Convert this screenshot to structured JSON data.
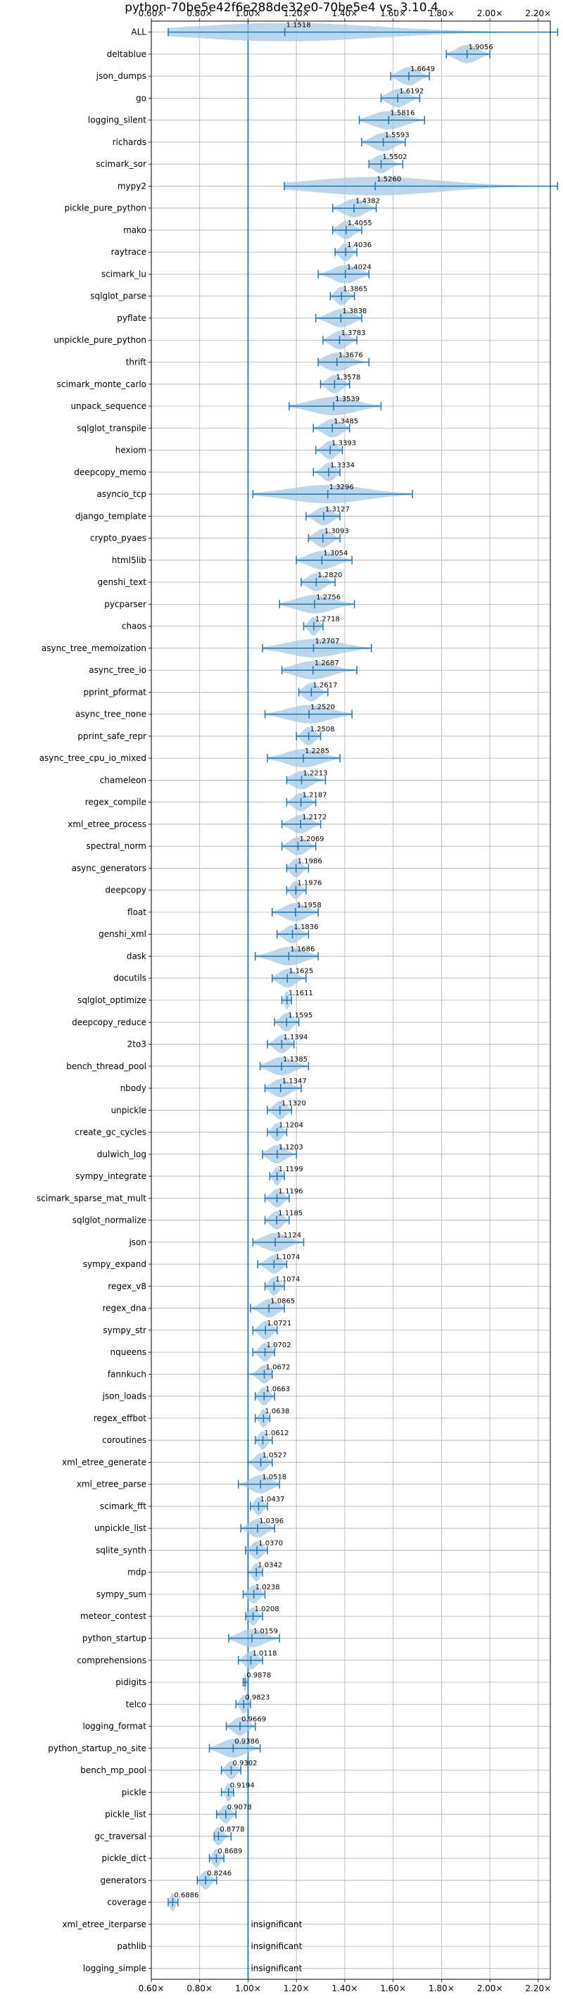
{
  "chart_data": {
    "type": "violin",
    "title": "python-70be5e42f6e288de32e0-70be5e4 vs. 3.10.4",
    "xlabel": "",
    "ylabel": "",
    "xlim": [
      0.6,
      2.25
    ],
    "xticks": [
      0.6,
      0.8,
      1.0,
      1.2,
      1.4,
      1.6,
      1.8,
      2.0,
      2.2
    ],
    "xtick_labels": [
      "0.60×",
      "0.80×",
      "1.00×",
      "1.20×",
      "1.40×",
      "1.60×",
      "1.80×",
      "2.00×",
      "2.20×"
    ],
    "reference_line": 1.0,
    "grid": true,
    "series_color": "#1f77b4",
    "violin_color": "#a6c8e6",
    "insignificant_label": "insignificant",
    "benchmarks": [
      {
        "name": "ALL",
        "value": 1.1518,
        "label": "1.1518",
        "min": 0.67,
        "max": 2.28
      },
      {
        "name": "deltablue",
        "value": 1.9056,
        "label": "1.9056",
        "min": 1.82,
        "max": 2.0
      },
      {
        "name": "json_dumps",
        "value": 1.6649,
        "label": "1.6649",
        "min": 1.59,
        "max": 1.75
      },
      {
        "name": "go",
        "value": 1.6192,
        "label": "1.6192",
        "min": 1.55,
        "max": 1.71
      },
      {
        "name": "logging_silent",
        "value": 1.5816,
        "label": "1.5816",
        "min": 1.46,
        "max": 1.73
      },
      {
        "name": "richards",
        "value": 1.5593,
        "label": "1.5593",
        "min": 1.47,
        "max": 1.65
      },
      {
        "name": "scimark_sor",
        "value": 1.5502,
        "label": "1.5502",
        "min": 1.5,
        "max": 1.64
      },
      {
        "name": "mypy2",
        "value": 1.526,
        "label": "1.5260",
        "min": 1.15,
        "max": 2.28
      },
      {
        "name": "pickle_pure_python",
        "value": 1.4382,
        "label": "1.4382",
        "min": 1.35,
        "max": 1.53
      },
      {
        "name": "mako",
        "value": 1.4055,
        "label": "1.4055",
        "min": 1.35,
        "max": 1.47
      },
      {
        "name": "raytrace",
        "value": 1.4036,
        "label": "1.4036",
        "min": 1.36,
        "max": 1.45
      },
      {
        "name": "scimark_lu",
        "value": 1.4024,
        "label": "1.4024",
        "min": 1.29,
        "max": 1.5
      },
      {
        "name": "sqlglot_parse",
        "value": 1.3865,
        "label": "1.3865",
        "min": 1.34,
        "max": 1.44
      },
      {
        "name": "pyflate",
        "value": 1.3838,
        "label": "1.3838",
        "min": 1.28,
        "max": 1.47
      },
      {
        "name": "unpickle_pure_python",
        "value": 1.3783,
        "label": "1.3783",
        "min": 1.31,
        "max": 1.45
      },
      {
        "name": "thrift",
        "value": 1.3676,
        "label": "1.3676",
        "min": 1.29,
        "max": 1.5
      },
      {
        "name": "scimark_monte_carlo",
        "value": 1.3578,
        "label": "1.3578",
        "min": 1.3,
        "max": 1.42
      },
      {
        "name": "unpack_sequence",
        "value": 1.3539,
        "label": "1.3539",
        "min": 1.17,
        "max": 1.55
      },
      {
        "name": "sqlglot_transpile",
        "value": 1.3485,
        "label": "1.3485",
        "min": 1.27,
        "max": 1.42
      },
      {
        "name": "hexiom",
        "value": 1.3393,
        "label": "1.3393",
        "min": 1.28,
        "max": 1.39
      },
      {
        "name": "deepcopy_memo",
        "value": 1.3334,
        "label": "1.3334",
        "min": 1.27,
        "max": 1.38
      },
      {
        "name": "asyncio_tcp",
        "value": 1.3296,
        "label": "1.3296",
        "min": 1.02,
        "max": 1.68
      },
      {
        "name": "django_template",
        "value": 1.3127,
        "label": "1.3127",
        "min": 1.24,
        "max": 1.38
      },
      {
        "name": "crypto_pyaes",
        "value": 1.3093,
        "label": "1.3093",
        "min": 1.25,
        "max": 1.38
      },
      {
        "name": "html5lib",
        "value": 1.3054,
        "label": "1.3054",
        "min": 1.2,
        "max": 1.43
      },
      {
        "name": "genshi_text",
        "value": 1.282,
        "label": "1.2820",
        "min": 1.22,
        "max": 1.36
      },
      {
        "name": "pycparser",
        "value": 1.2756,
        "label": "1.2756",
        "min": 1.13,
        "max": 1.44
      },
      {
        "name": "chaos",
        "value": 1.2718,
        "label": "1.2718",
        "min": 1.23,
        "max": 1.31
      },
      {
        "name": "async_tree_memoization",
        "value": 1.2707,
        "label": "1.2707",
        "min": 1.06,
        "max": 1.51
      },
      {
        "name": "async_tree_io",
        "value": 1.2687,
        "label": "1.2687",
        "min": 1.14,
        "max": 1.45
      },
      {
        "name": "pprint_pformat",
        "value": 1.2617,
        "label": "1.2617",
        "min": 1.21,
        "max": 1.33
      },
      {
        "name": "async_tree_none",
        "value": 1.252,
        "label": "1.2520",
        "min": 1.07,
        "max": 1.43
      },
      {
        "name": "pprint_safe_repr",
        "value": 1.2508,
        "label": "1.2508",
        "min": 1.2,
        "max": 1.3
      },
      {
        "name": "async_tree_cpu_io_mixed",
        "value": 1.2285,
        "label": "1.2285",
        "min": 1.08,
        "max": 1.38
      },
      {
        "name": "chameleon",
        "value": 1.2213,
        "label": "1.2213",
        "min": 1.16,
        "max": 1.32
      },
      {
        "name": "regex_compile",
        "value": 1.2187,
        "label": "1.2187",
        "min": 1.16,
        "max": 1.28
      },
      {
        "name": "xml_etree_process",
        "value": 1.2172,
        "label": "1.2172",
        "min": 1.14,
        "max": 1.3
      },
      {
        "name": "spectral_norm",
        "value": 1.2069,
        "label": "1.2069",
        "min": 1.14,
        "max": 1.28
      },
      {
        "name": "async_generators",
        "value": 1.1986,
        "label": "1.1986",
        "min": 1.16,
        "max": 1.25
      },
      {
        "name": "deepcopy",
        "value": 1.1976,
        "label": "1.1976",
        "min": 1.16,
        "max": 1.24
      },
      {
        "name": "float",
        "value": 1.1958,
        "label": "1.1958",
        "min": 1.1,
        "max": 1.29
      },
      {
        "name": "genshi_xml",
        "value": 1.1836,
        "label": "1.1836",
        "min": 1.12,
        "max": 1.25
      },
      {
        "name": "dask",
        "value": 1.1686,
        "label": "1.1686",
        "min": 1.03,
        "max": 1.29
      },
      {
        "name": "docutils",
        "value": 1.1625,
        "label": "1.1625",
        "min": 1.1,
        "max": 1.24
      },
      {
        "name": "sqlglot_optimize",
        "value": 1.1611,
        "label": "1.1611",
        "min": 1.14,
        "max": 1.18
      },
      {
        "name": "deepcopy_reduce",
        "value": 1.1595,
        "label": "1.1595",
        "min": 1.11,
        "max": 1.21
      },
      {
        "name": "2to3",
        "value": 1.1394,
        "label": "1.1394",
        "min": 1.08,
        "max": 1.19
      },
      {
        "name": "bench_thread_pool",
        "value": 1.1385,
        "label": "1.1385",
        "min": 1.05,
        "max": 1.25
      },
      {
        "name": "nbody",
        "value": 1.1347,
        "label": "1.1347",
        "min": 1.07,
        "max": 1.22
      },
      {
        "name": "unpickle",
        "value": 1.132,
        "label": "1.1320",
        "min": 1.08,
        "max": 1.18
      },
      {
        "name": "create_gc_cycles",
        "value": 1.1204,
        "label": "1.1204",
        "min": 1.08,
        "max": 1.16
      },
      {
        "name": "dulwich_log",
        "value": 1.1203,
        "label": "1.1203",
        "min": 1.06,
        "max": 1.2
      },
      {
        "name": "sympy_integrate",
        "value": 1.1199,
        "label": "1.1199",
        "min": 1.09,
        "max": 1.15
      },
      {
        "name": "scimark_sparse_mat_mult",
        "value": 1.1196,
        "label": "1.1196",
        "min": 1.07,
        "max": 1.17
      },
      {
        "name": "sqlglot_normalize",
        "value": 1.1185,
        "label": "1.1185",
        "min": 1.07,
        "max": 1.17
      },
      {
        "name": "json",
        "value": 1.1124,
        "label": "1.1124",
        "min": 1.02,
        "max": 1.23
      },
      {
        "name": "sympy_expand",
        "value": 1.1074,
        "label": "1.1074",
        "min": 1.04,
        "max": 1.16
      },
      {
        "name": "regex_v8",
        "value": 1.1074,
        "label": "1.1074",
        "min": 1.07,
        "max": 1.15
      },
      {
        "name": "regex_dna",
        "value": 1.0865,
        "label": "1.0865",
        "min": 1.01,
        "max": 1.15
      },
      {
        "name": "sympy_str",
        "value": 1.0721,
        "label": "1.0721",
        "min": 1.02,
        "max": 1.12
      },
      {
        "name": "nqueens",
        "value": 1.0702,
        "label": "1.0702",
        "min": 1.02,
        "max": 1.11
      },
      {
        "name": "fannkuch",
        "value": 1.0672,
        "label": "1.0672",
        "min": 1.0,
        "max": 1.1
      },
      {
        "name": "json_loads",
        "value": 1.0663,
        "label": "1.0663",
        "min": 1.03,
        "max": 1.11
      },
      {
        "name": "regex_effbot",
        "value": 1.0638,
        "label": "1.0638",
        "min": 1.03,
        "max": 1.09
      },
      {
        "name": "coroutines",
        "value": 1.0612,
        "label": "1.0612",
        "min": 1.03,
        "max": 1.1
      },
      {
        "name": "xml_etree_generate",
        "value": 1.0527,
        "label": "1.0527",
        "min": 1.0,
        "max": 1.1
      },
      {
        "name": "xml_etree_parse",
        "value": 1.0518,
        "label": "1.0518",
        "min": 0.96,
        "max": 1.13
      },
      {
        "name": "scimark_fft",
        "value": 1.0437,
        "label": "1.0437",
        "min": 1.01,
        "max": 1.08
      },
      {
        "name": "unpickle_list",
        "value": 1.0396,
        "label": "1.0396",
        "min": 0.97,
        "max": 1.11
      },
      {
        "name": "sqlite_synth",
        "value": 1.037,
        "label": "1.0370",
        "min": 0.99,
        "max": 1.08
      },
      {
        "name": "mdp",
        "value": 1.0342,
        "label": "1.0342",
        "min": 1.0,
        "max": 1.06
      },
      {
        "name": "sympy_sum",
        "value": 1.0238,
        "label": "1.0238",
        "min": 0.98,
        "max": 1.07
      },
      {
        "name": "meteor_contest",
        "value": 1.0208,
        "label": "1.0208",
        "min": 0.99,
        "max": 1.06
      },
      {
        "name": "python_startup",
        "value": 1.0159,
        "label": "1.0159",
        "min": 0.92,
        "max": 1.13
      },
      {
        "name": "comprehensions",
        "value": 1.0118,
        "label": "1.0118",
        "min": 0.96,
        "max": 1.06
      },
      {
        "name": "pidigits",
        "value": 0.9878,
        "label": "0.9878",
        "min": 0.98,
        "max": 1.0
      },
      {
        "name": "telco",
        "value": 0.9823,
        "label": "0.9823",
        "min": 0.95,
        "max": 1.01
      },
      {
        "name": "logging_format",
        "value": 0.9669,
        "label": "0.9669",
        "min": 0.91,
        "max": 1.03
      },
      {
        "name": "python_startup_no_site",
        "value": 0.9386,
        "label": "0.9386",
        "min": 0.84,
        "max": 1.05
      },
      {
        "name": "bench_mp_pool",
        "value": 0.9302,
        "label": "0.9302",
        "min": 0.89,
        "max": 0.97
      },
      {
        "name": "pickle",
        "value": 0.9194,
        "label": "0.9194",
        "min": 0.89,
        "max": 0.94
      },
      {
        "name": "pickle_list",
        "value": 0.9078,
        "label": "0.9078",
        "min": 0.87,
        "max": 0.95
      },
      {
        "name": "gc_traversal",
        "value": 0.8778,
        "label": "0.8778",
        "min": 0.86,
        "max": 0.93
      },
      {
        "name": "pickle_dict",
        "value": 0.8689,
        "label": "0.8689",
        "min": 0.84,
        "max": 0.9
      },
      {
        "name": "generators",
        "value": 0.8246,
        "label": "0.8246",
        "min": 0.79,
        "max": 0.87
      },
      {
        "name": "coverage",
        "value": 0.6886,
        "label": "0.6886",
        "min": 0.67,
        "max": 0.71
      },
      {
        "name": "xml_etree_iterparse",
        "value": null,
        "label": "",
        "insignificant": true
      },
      {
        "name": "pathlib",
        "value": null,
        "label": "",
        "insignificant": true
      },
      {
        "name": "logging_simple",
        "value": null,
        "label": "",
        "insignificant": true
      }
    ]
  }
}
